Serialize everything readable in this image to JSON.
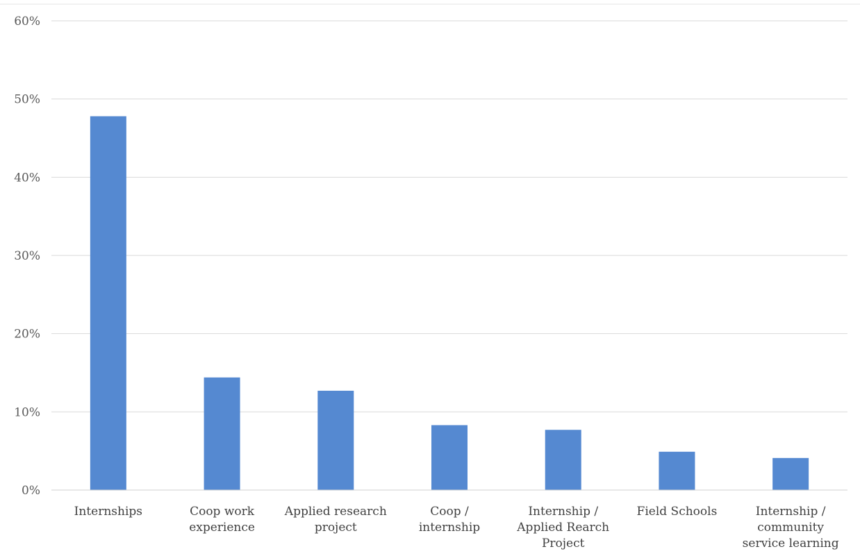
{
  "chart_data": {
    "type": "bar",
    "title": "",
    "xlabel": "",
    "ylabel": "",
    "categories": [
      [
        "Internships"
      ],
      [
        "Coop work",
        "experience"
      ],
      [
        "Applied research",
        "project"
      ],
      [
        "Coop /",
        "internship"
      ],
      [
        "Internship /",
        "Applied Rearch",
        "Project"
      ],
      [
        "Field Schools"
      ],
      [
        "Internship /",
        "community",
        "service learning"
      ]
    ],
    "values": [
      47.8,
      14.4,
      12.7,
      8.3,
      7.7,
      4.9,
      4.1
    ],
    "unit": "%",
    "ylim": [
      0,
      60
    ],
    "yticks": [
      0,
      10,
      20,
      30,
      40,
      50,
      60
    ],
    "ytick_labels": [
      "0%",
      "10%",
      "20%",
      "30%",
      "40%",
      "50%",
      "60%"
    ],
    "grid": true,
    "legend": "none",
    "bar_color": "#5589d1"
  }
}
